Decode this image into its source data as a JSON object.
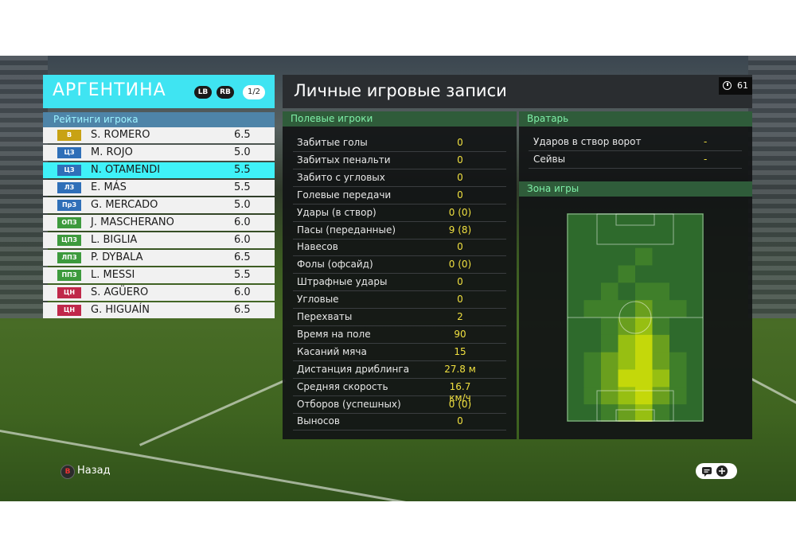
{
  "team": {
    "name": "АРГЕНТИНА",
    "lb": "LB",
    "rb": "RB",
    "page": "1/2",
    "ratings_title": "Рейтинги игрока"
  },
  "players": [
    {
      "pos": "В",
      "name": "S. ROMERO",
      "rating": "6.5",
      "color": "#c8a214"
    },
    {
      "pos": "ЦЗ",
      "name": "M. ROJO",
      "rating": "5.0",
      "color": "#2f6fb8"
    },
    {
      "pos": "ЦЗ",
      "name": "N. OTAMENDI",
      "rating": "5.5",
      "color": "#2f6fb8"
    },
    {
      "pos": "ЛЗ",
      "name": "E. MÁS",
      "rating": "5.5",
      "color": "#2f6fb8"
    },
    {
      "pos": "ПрЗ",
      "name": "G. MERCADO",
      "rating": "5.0",
      "color": "#2f6fb8"
    },
    {
      "pos": "ОПЗ",
      "name": "J. MASCHERANO",
      "rating": "6.0",
      "color": "#3d9a3d"
    },
    {
      "pos": "ЦПЗ",
      "name": "L. BIGLIA",
      "rating": "6.0",
      "color": "#3d9a3d"
    },
    {
      "pos": "ЛПЗ",
      "name": "P. DYBALA",
      "rating": "6.5",
      "color": "#3d9a3d"
    },
    {
      "pos": "ППЗ",
      "name": "L. MESSI",
      "rating": "5.5",
      "color": "#3d9a3d"
    },
    {
      "pos": "ЦН",
      "name": "S. AGÜERO",
      "rating": "6.0",
      "color": "#c0284a"
    },
    {
      "pos": "ЦН",
      "name": "G. HIGUAÍN",
      "rating": "6.5",
      "color": "#c0284a"
    }
  ],
  "selected_player_index": 2,
  "records": {
    "title": "Личные игровые записи",
    "timer": "61",
    "field_header": "Полевые игроки",
    "stats": [
      {
        "label": "Забитые голы",
        "value": "0"
      },
      {
        "label": "Забитых пенальти",
        "value": "0"
      },
      {
        "label": "Забито с угловых",
        "value": "0"
      },
      {
        "label": "Голевые передачи",
        "value": "0"
      },
      {
        "label": "Удары (в створ)",
        "value": "0 (0)"
      },
      {
        "label": "Пасы (переданные)",
        "value": "9 (8)"
      },
      {
        "label": "Навесов",
        "value": "0"
      },
      {
        "label": "Фолы (офсайд)",
        "value": "0 (0)"
      },
      {
        "label": "Штрафные удары",
        "value": "0"
      },
      {
        "label": "Угловые",
        "value": "0"
      },
      {
        "label": "Перехваты",
        "value": "2"
      },
      {
        "label": "Время на поле",
        "value": "90"
      },
      {
        "label": "Касаний мяча",
        "value": "15"
      },
      {
        "label": "Дистанция дриблинга",
        "value": "27.8 м"
      },
      {
        "label": "Средняя скорость",
        "value": "16.7 км/ч"
      },
      {
        "label": "Отборов (успешных)",
        "value": "0 (0)"
      },
      {
        "label": "Выносов",
        "value": "0"
      }
    ]
  },
  "goalkeeper": {
    "header": "Вратарь",
    "stats": [
      {
        "label": "Ударов в створ ворот",
        "value": "-"
      },
      {
        "label": "Сейвы",
        "value": "-"
      }
    ]
  },
  "zone": {
    "header": "Зона игры",
    "heat_levels": [
      [
        0,
        0,
        0,
        0,
        0,
        0,
        0,
        0
      ],
      [
        0,
        0,
        0,
        0,
        0,
        0,
        0,
        0
      ],
      [
        0,
        0,
        0,
        0,
        1,
        0,
        0,
        0
      ],
      [
        0,
        0,
        0,
        1,
        0,
        0,
        0,
        0
      ],
      [
        0,
        0,
        1,
        0,
        1,
        1,
        0,
        0
      ],
      [
        0,
        1,
        1,
        1,
        2,
        1,
        1,
        0
      ],
      [
        0,
        0,
        1,
        2,
        3,
        1,
        0,
        0
      ],
      [
        0,
        0,
        1,
        3,
        4,
        2,
        0,
        0
      ],
      [
        0,
        1,
        2,
        3,
        4,
        2,
        1,
        0
      ],
      [
        0,
        1,
        2,
        4,
        4,
        3,
        1,
        0
      ],
      [
        0,
        1,
        2,
        3,
        4,
        2,
        1,
        0
      ],
      [
        0,
        0,
        1,
        2,
        3,
        1,
        0,
        0
      ]
    ]
  },
  "footer": {
    "b_button": "B",
    "back_label": "Назад"
  }
}
